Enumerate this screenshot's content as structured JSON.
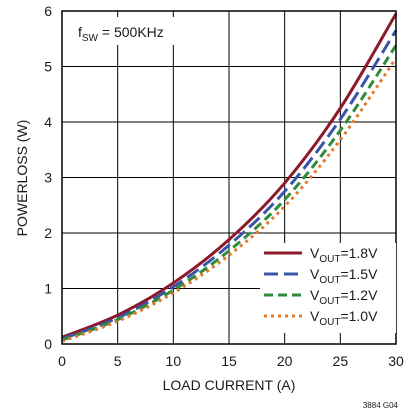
{
  "chart_data": {
    "type": "line",
    "xlabel": "LOAD CURRENT (A)",
    "ylabel": "POWERLOSS (W)",
    "xlim": [
      0,
      30
    ],
    "ylim": [
      0,
      6
    ],
    "x_ticks": [
      0,
      5,
      10,
      15,
      20,
      25,
      30
    ],
    "y_ticks": [
      0,
      1,
      2,
      3,
      4,
      5,
      6
    ],
    "grid": true,
    "legend_position": "bottom-right",
    "annotation": {
      "prefix": "f",
      "subscript": "SW",
      "suffix": " = 500KHz"
    },
    "figure_id": "3884 G04",
    "series": [
      {
        "label_prefix": "V",
        "label_sub": "OUT",
        "label_suffix": "=1.8V",
        "color": "#8b1a2b",
        "dash": "solid",
        "x": [
          0,
          5,
          10,
          15,
          20,
          25,
          30
        ],
        "y": [
          0.12,
          0.52,
          1.1,
          1.88,
          2.9,
          4.25,
          5.95
        ]
      },
      {
        "label_prefix": "V",
        "label_sub": "OUT",
        "label_suffix": "=1.5V",
        "color": "#3a55a8",
        "dash": "long",
        "x": [
          0,
          5,
          10,
          15,
          20,
          25,
          30
        ],
        "y": [
          0.09,
          0.47,
          1.03,
          1.78,
          2.75,
          4.05,
          5.65
        ]
      },
      {
        "label_prefix": "V",
        "label_sub": "OUT",
        "label_suffix": "=1.2V",
        "color": "#2e8b3a",
        "dash": "medium",
        "x": [
          0,
          5,
          10,
          15,
          20,
          25,
          30
        ],
        "y": [
          0.07,
          0.44,
          0.97,
          1.68,
          2.6,
          3.85,
          5.38
        ]
      },
      {
        "label_prefix": "V",
        "label_sub": "OUT",
        "label_suffix": "=1.0V",
        "color": "#e07b2a",
        "dash": "dotted",
        "x": [
          0,
          5,
          10,
          15,
          20,
          25,
          30
        ],
        "y": [
          0.05,
          0.41,
          0.92,
          1.6,
          2.48,
          3.68,
          5.15
        ]
      }
    ]
  }
}
